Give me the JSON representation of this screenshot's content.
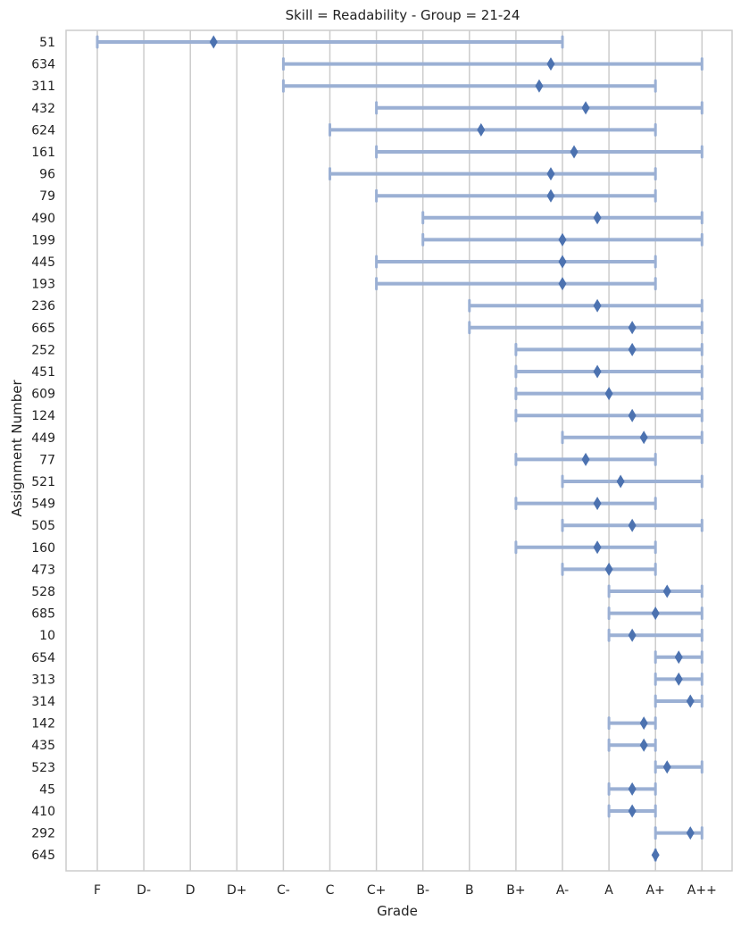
{
  "chart_data": {
    "type": "errorbar-range",
    "title": "Skill = Readability - Group = 21-24",
    "xlabel": "Grade",
    "ylabel": "Assignment Number",
    "x_categories": [
      "F",
      "D-",
      "D",
      "D+",
      "C-",
      "C",
      "C+",
      "B-",
      "B",
      "B+",
      "A-",
      "A",
      "A+",
      "A++"
    ],
    "grid": "vertical",
    "colors": {
      "range": "#9bb0d4",
      "marker": "#4c72b0",
      "grid": "#cccccc",
      "frame": "#cccccc"
    },
    "rows": [
      {
        "label": "51",
        "min": 0,
        "max": 10,
        "mean": 2.5
      },
      {
        "label": "634",
        "min": 4,
        "max": 13,
        "mean": 9.75
      },
      {
        "label": "311",
        "min": 4,
        "max": 12,
        "mean": 9.5
      },
      {
        "label": "432",
        "min": 6,
        "max": 13,
        "mean": 10.5
      },
      {
        "label": "624",
        "min": 5,
        "max": 12,
        "mean": 8.25
      },
      {
        "label": "161",
        "min": 6,
        "max": 13,
        "mean": 10.25
      },
      {
        "label": "96",
        "min": 5,
        "max": 12,
        "mean": 9.75
      },
      {
        "label": "79",
        "min": 6,
        "max": 12,
        "mean": 9.75
      },
      {
        "label": "490",
        "min": 7,
        "max": 13,
        "mean": 10.75
      },
      {
        "label": "199",
        "min": 7,
        "max": 13,
        "mean": 10.0
      },
      {
        "label": "445",
        "min": 6,
        "max": 12,
        "mean": 10.0
      },
      {
        "label": "193",
        "min": 6,
        "max": 12,
        "mean": 10.0
      },
      {
        "label": "236",
        "min": 8,
        "max": 13,
        "mean": 10.75
      },
      {
        "label": "665",
        "min": 8,
        "max": 13,
        "mean": 11.5
      },
      {
        "label": "252",
        "min": 9,
        "max": 13,
        "mean": 11.5
      },
      {
        "label": "451",
        "min": 9,
        "max": 13,
        "mean": 10.75
      },
      {
        "label": "609",
        "min": 9,
        "max": 13,
        "mean": 11.0
      },
      {
        "label": "124",
        "min": 9,
        "max": 13,
        "mean": 11.5
      },
      {
        "label": "449",
        "min": 10,
        "max": 13,
        "mean": 11.75
      },
      {
        "label": "77",
        "min": 9,
        "max": 12,
        "mean": 10.5
      },
      {
        "label": "521",
        "min": 10,
        "max": 13,
        "mean": 11.25
      },
      {
        "label": "549",
        "min": 9,
        "max": 12,
        "mean": 10.75
      },
      {
        "label": "505",
        "min": 10,
        "max": 13,
        "mean": 11.5
      },
      {
        "label": "160",
        "min": 9,
        "max": 12,
        "mean": 10.75
      },
      {
        "label": "473",
        "min": 10,
        "max": 12,
        "mean": 11.0
      },
      {
        "label": "528",
        "min": 11,
        "max": 13,
        "mean": 12.25
      },
      {
        "label": "685",
        "min": 11,
        "max": 13,
        "mean": 12.0
      },
      {
        "label": "10",
        "min": 11,
        "max": 13,
        "mean": 11.5
      },
      {
        "label": "654",
        "min": 12,
        "max": 13,
        "mean": 12.5
      },
      {
        "label": "313",
        "min": 12,
        "max": 13,
        "mean": 12.5
      },
      {
        "label": "314",
        "min": 12,
        "max": 13,
        "mean": 12.75
      },
      {
        "label": "142",
        "min": 11,
        "max": 12,
        "mean": 11.75
      },
      {
        "label": "435",
        "min": 11,
        "max": 12,
        "mean": 11.75
      },
      {
        "label": "523",
        "min": 12,
        "max": 13,
        "mean": 12.25
      },
      {
        "label": "45",
        "min": 11,
        "max": 12,
        "mean": 11.5
      },
      {
        "label": "410",
        "min": 11,
        "max": 12,
        "mean": 11.5
      },
      {
        "label": "292",
        "min": 12,
        "max": 13,
        "mean": 12.75
      },
      {
        "label": "645",
        "min": 12,
        "max": 12,
        "mean": 12.0
      }
    ]
  }
}
